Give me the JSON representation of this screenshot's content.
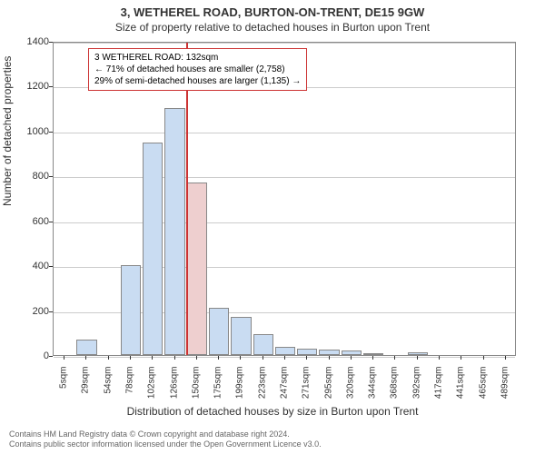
{
  "title": {
    "line1": "3, WETHEREL ROAD, BURTON-ON-TRENT, DE15 9GW",
    "line2": "Size of property relative to detached houses in Burton upon Trent",
    "fontsize_line1": 13,
    "fontsize_line2": 12,
    "color": "#333333"
  },
  "chart": {
    "type": "histogram",
    "plot_bg": "#ffffff",
    "border_color": "#888888",
    "grid_color": "#cccccc",
    "ylabel": "Number of detached properties",
    "xlabel": "Distribution of detached houses by size in Burton upon Trent",
    "label_fontsize": 12,
    "tick_fontsize": 11,
    "xtick_fontsize": 10,
    "ylim": [
      0,
      1400
    ],
    "ytick_step": 200,
    "yticks": [
      0,
      200,
      400,
      600,
      800,
      1000,
      1200,
      1400
    ],
    "xticks": [
      "5sqm",
      "29sqm",
      "54sqm",
      "78sqm",
      "102sqm",
      "126sqm",
      "150sqm",
      "175sqm",
      "199sqm",
      "223sqm",
      "247sqm",
      "271sqm",
      "295sqm",
      "320sqm",
      "344sqm",
      "368sqm",
      "392sqm",
      "417sqm",
      "441sqm",
      "465sqm",
      "489sqm"
    ],
    "bars": {
      "values": [
        0,
        70,
        0,
        400,
        945,
        1100,
        770,
        210,
        170,
        95,
        35,
        30,
        25,
        20,
        10,
        0,
        12,
        0,
        0,
        0,
        0
      ],
      "fill_color": "#c9dcf2",
      "highlight_fill": "#eecfcf",
      "border_color": "#888888",
      "highlight_index": 6
    },
    "marker": {
      "position_category_index": 6,
      "color": "#cc3333",
      "width": 2
    },
    "annotation": {
      "lines": [
        "3 WETHEREL ROAD: 132sqm",
        "← 71% of detached houses are smaller (2,758)",
        "29% of semi-detached houses are larger (1,135) →"
      ],
      "border_color": "#cc3333",
      "bg": "#ffffff",
      "fontsize": 10
    }
  },
  "footer": {
    "line1": "Contains HM Land Registry data © Crown copyright and database right 2024.",
    "line2": "Contains public sector information licensed under the Open Government Licence v3.0.",
    "color": "#666666",
    "fontsize": 9
  }
}
